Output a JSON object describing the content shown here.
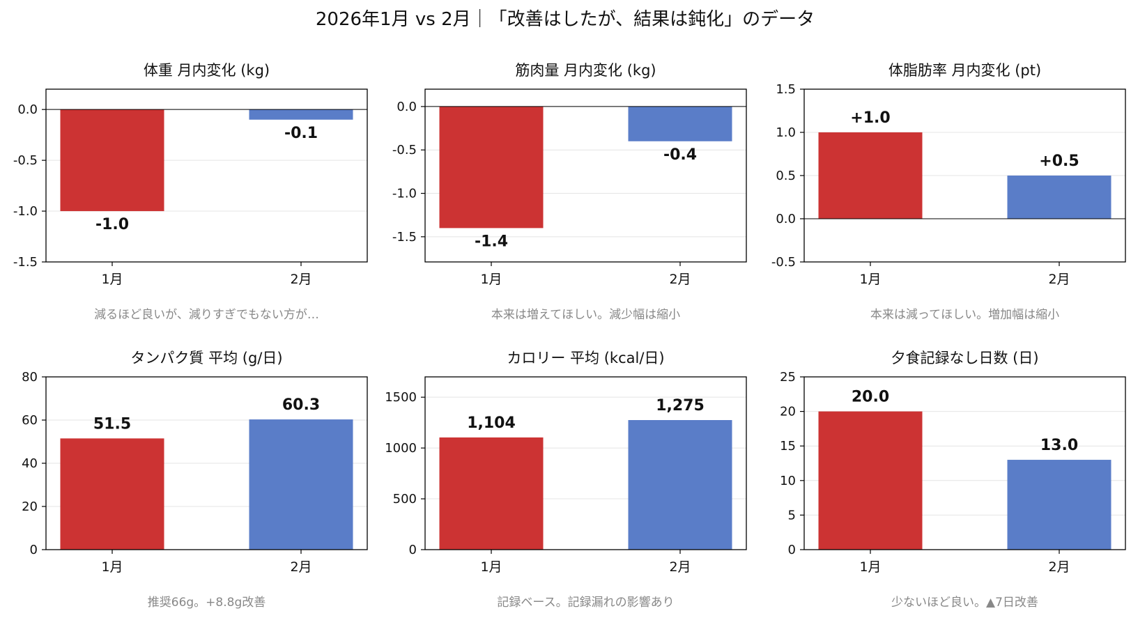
{
  "figure_title": "2026年1月 vs 2月｜「改善はしたが、結果は鈍化」のデータ",
  "colors": {
    "jan": "#cc3333",
    "feb": "#5a7dc8"
  },
  "chart_data": [
    {
      "type": "bar",
      "title": "体重 月内変化 (kg)",
      "categories": [
        "1月",
        "2月"
      ],
      "values": [
        -1.0,
        -0.1
      ],
      "value_labels": [
        "-1.0",
        "-0.1"
      ],
      "ylim": [
        -1.5,
        0.2
      ],
      "yticks": [
        0.0,
        -0.5,
        -1.0,
        -1.5
      ],
      "ytick_labels": [
        "0.0",
        "-0.5",
        "-1.0",
        "-1.5"
      ],
      "note": "減るほど良いが、減りすぎでもない方が…"
    },
    {
      "type": "bar",
      "title": "筋肉量 月内変化 (kg)",
      "categories": [
        "1月",
        "2月"
      ],
      "values": [
        -1.4,
        -0.4
      ],
      "value_labels": [
        "-1.4",
        "-0.4"
      ],
      "ylim": [
        -1.79,
        0.2
      ],
      "yticks": [
        0.0,
        -0.5,
        -1.0,
        -1.5
      ],
      "ytick_labels": [
        "0.0",
        "-0.5",
        "-1.0",
        "-1.5"
      ],
      "note": "本来は増えてほしい。減少幅は縮小"
    },
    {
      "type": "bar",
      "title": "体脂肪率 月内変化 (pt)",
      "categories": [
        "1月",
        "2月"
      ],
      "values": [
        1.0,
        0.5
      ],
      "value_labels": [
        "+1.0",
        "+0.5"
      ],
      "ylim": [
        -0.5,
        1.5
      ],
      "yticks": [
        1.5,
        1.0,
        0.5,
        0.0,
        -0.5
      ],
      "ytick_labels": [
        "1.5",
        "1.0",
        "0.5",
        "0.0",
        "-0.5"
      ],
      "note": "本来は減ってほしい。増加幅は縮小"
    },
    {
      "type": "bar",
      "title": "タンパク質 平均 (g/日)",
      "categories": [
        "1月",
        "2月"
      ],
      "values": [
        51.5,
        60.3
      ],
      "value_labels": [
        "51.5",
        "60.3"
      ],
      "ylim": [
        0,
        80
      ],
      "yticks": [
        80,
        60,
        40,
        20,
        0
      ],
      "ytick_labels": [
        "80",
        "60",
        "40",
        "20",
        "0"
      ],
      "note": "推奨66g。+8.8g改善"
    },
    {
      "type": "bar",
      "title": "カロリー 平均 (kcal/日)",
      "categories": [
        "1月",
        "2月"
      ],
      "values": [
        1104,
        1275
      ],
      "value_labels": [
        "1,104",
        "1,275"
      ],
      "ylim": [
        0,
        1700
      ],
      "yticks": [
        1500,
        1000,
        500,
        0
      ],
      "ytick_labels": [
        "1500",
        "1000",
        "500",
        "0"
      ],
      "note": "記録ベース。記録漏れの影響あり"
    },
    {
      "type": "bar",
      "title": "夕食記録なし日数 (日)",
      "categories": [
        "1月",
        "2月"
      ],
      "values": [
        20.0,
        13.0
      ],
      "value_labels": [
        "20.0",
        "13.0"
      ],
      "ylim": [
        0,
        25
      ],
      "yticks": [
        25,
        20,
        15,
        10,
        5,
        0
      ],
      "ytick_labels": [
        "25",
        "20",
        "15",
        "10",
        "5",
        "0"
      ],
      "note": "少ないほど良い。▲7日改善"
    }
  ]
}
